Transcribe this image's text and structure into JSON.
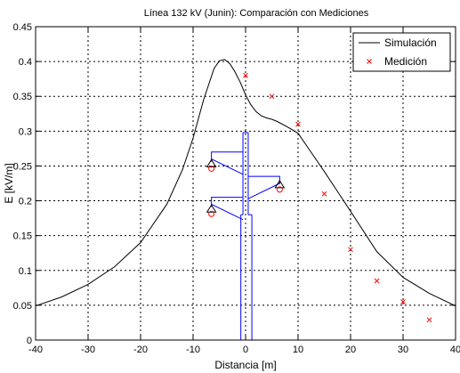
{
  "chart_data": {
    "type": "line",
    "title": "Línea 132 kV (Junin): Comparación con Mediciones",
    "xlabel": "Distancia [m]",
    "ylabel": "E [kV/m]",
    "xlim": [
      -40,
      40
    ],
    "ylim": [
      0,
      0.45
    ],
    "xticks": [
      "-40",
      "-30",
      "-20",
      "-10",
      "0",
      "10",
      "20",
      "30",
      "40"
    ],
    "yticks": [
      "0",
      "0.05",
      "0.1",
      "0.15",
      "0.2",
      "0.25",
      "0.3",
      "0.35",
      "0.4",
      "0.45"
    ],
    "grid": true,
    "legend_position": "top-right",
    "series": [
      {
        "name": "Simulación",
        "color": "#000000",
        "marker": "line",
        "x": [
          -40,
          -35,
          -30,
          -25,
          -20,
          -15,
          -12,
          -10,
          -8,
          -6,
          -5,
          -4,
          -3,
          -2,
          -1,
          0,
          1,
          2,
          3,
          4,
          5,
          6,
          8,
          10,
          12,
          15,
          20,
          25,
          30,
          35,
          40
        ],
        "y": [
          0.049,
          0.062,
          0.08,
          0.105,
          0.14,
          0.195,
          0.245,
          0.29,
          0.345,
          0.39,
          0.401,
          0.403,
          0.397,
          0.385,
          0.37,
          0.352,
          0.338,
          0.328,
          0.322,
          0.319,
          0.317,
          0.314,
          0.306,
          0.297,
          0.275,
          0.242,
          0.185,
          0.127,
          0.09,
          0.067,
          0.049
        ]
      },
      {
        "name": "Medición",
        "color": "#ff0000",
        "marker": "x",
        "x": [
          0,
          5,
          10,
          15,
          20,
          25,
          30,
          35
        ],
        "y": [
          0.38,
          0.35,
          0.31,
          0.21,
          0.13,
          0.085,
          0.055,
          0.029
        ]
      }
    ],
    "tower_sketch": {
      "color": "#0000ff",
      "insulators": [
        {
          "x": -6.5,
          "y": 0.27
        },
        {
          "x": -6.5,
          "y": 0.205
        },
        {
          "x": 6.5,
          "y": 0.235
        }
      ],
      "conductors": [
        {
          "x": -6.5,
          "y": 0.25
        },
        {
          "x": -6.5,
          "y": 0.185
        },
        {
          "x": 6.5,
          "y": 0.22
        }
      ],
      "pole": {
        "x_left": -0.5,
        "x_right": 0.5,
        "mast_left": -0.9,
        "mast_right": 1.2,
        "top": 0.298,
        "mid": 0.18
      }
    }
  }
}
